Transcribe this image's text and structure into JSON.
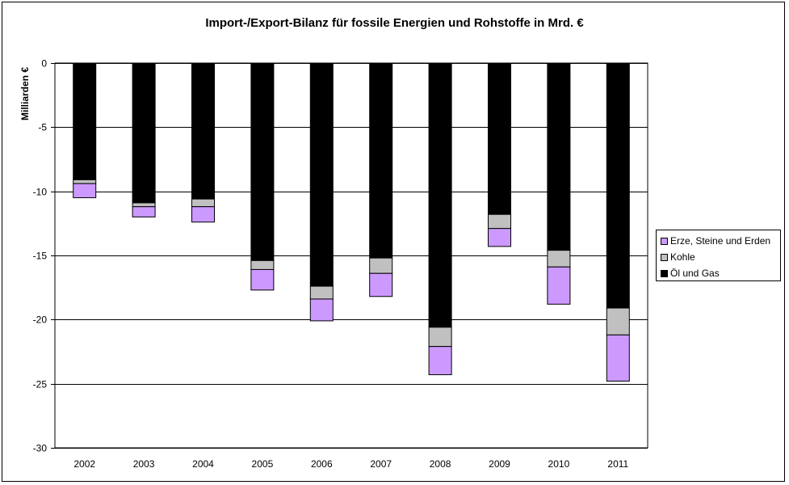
{
  "chart_data": {
    "type": "bar",
    "stacked": true,
    "title": "Import-/Export-Bilanz für fossile Energien und Rohstoffe in Mrd. €",
    "xlabel": "",
    "ylabel": "Milliarden €",
    "ylim": [
      -30,
      0
    ],
    "yticks": [
      0,
      -5,
      -10,
      -15,
      -20,
      -25,
      -30
    ],
    "ytick_labels": [
      "0",
      "-5",
      "-10",
      "-15",
      "-20",
      "-25",
      "-30"
    ],
    "grid": true,
    "legend_position": "right",
    "categories": [
      "2002",
      "2003",
      "2004",
      "2005",
      "2006",
      "2007",
      "2008",
      "2009",
      "2010",
      "2011"
    ],
    "series": [
      {
        "name": "Öl und Gas",
        "color": "#000000",
        "values": [
          -9.1,
          -10.9,
          -10.6,
          -15.4,
          -17.4,
          -15.2,
          -20.6,
          -11.8,
          -14.6,
          -19.1
        ]
      },
      {
        "name": "Kohle",
        "color": "#c0c0c0",
        "values": [
          -0.3,
          -0.3,
          -0.6,
          -0.7,
          -1.0,
          -1.2,
          -1.5,
          -1.1,
          -1.3,
          -2.1
        ]
      },
      {
        "name": "Erze, Steine und Erden",
        "color": "#cc99ff",
        "values": [
          -1.1,
          -0.8,
          -1.2,
          -1.6,
          -1.7,
          -1.8,
          -2.2,
          -1.4,
          -2.9,
          -3.6
        ]
      }
    ],
    "legend_order": [
      "Erze, Steine und Erden",
      "Kohle",
      "Öl und Gas"
    ]
  }
}
